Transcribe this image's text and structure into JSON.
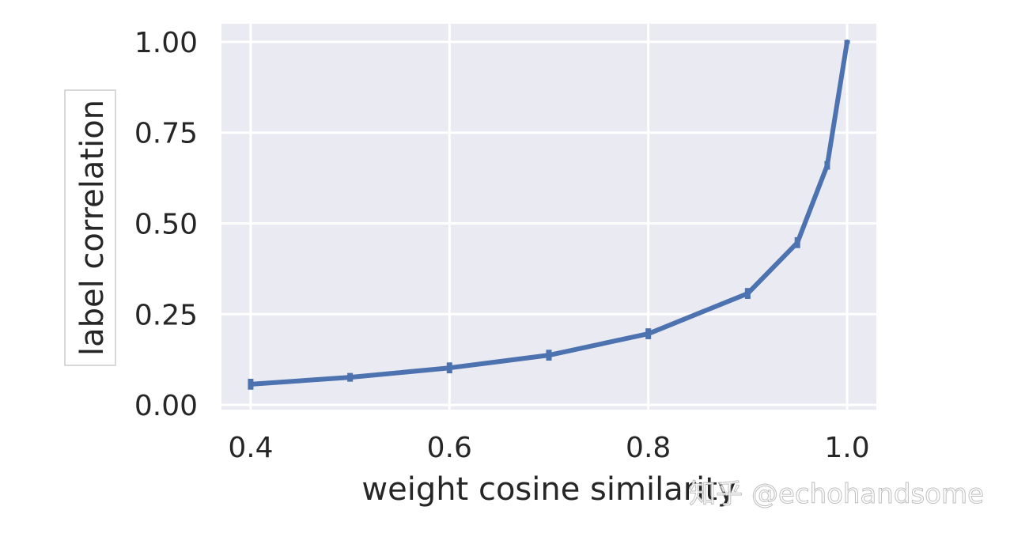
{
  "chart_data": {
    "type": "line",
    "x_label": "weight cosine similarity",
    "y_label": "label correlation",
    "x": [
      0.4,
      0.5,
      0.6,
      0.7,
      0.8,
      0.9,
      0.95,
      0.98,
      1.0
    ],
    "series": [
      {
        "name": "label correlation",
        "color": "#4c72b0",
        "values": [
          0.057,
          0.076,
          0.102,
          0.137,
          0.196,
          0.307,
          0.447,
          0.66,
          1.0
        ],
        "errors": [
          0.015,
          0.012,
          0.015,
          0.015,
          0.015,
          0.015,
          0.015,
          0.012,
          0.005
        ]
      }
    ],
    "xlim": [
      0.3706,
      1.0294
    ],
    "ylim": [
      -0.013,
      1.05
    ],
    "xticks": [
      0.4,
      0.6,
      0.8,
      {
        "value": 1.0,
        "label": "1.0"
      }
    ],
    "yticks": [
      {
        "value": 0,
        "label": "0.00"
      },
      0.25,
      {
        "value": 0.5,
        "label": "0.50"
      },
      0.75,
      {
        "value": 1.0,
        "label": "1.00"
      }
    ],
    "grid": true,
    "background": "#eaeaf2",
    "watermark": "知乎 @echohandsome"
  }
}
